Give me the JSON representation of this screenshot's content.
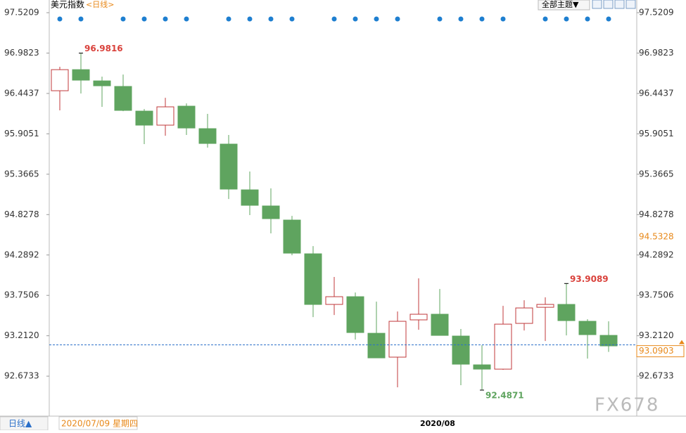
{
  "header": {
    "title": "美元指数",
    "period": "<日线>",
    "theme_menu": "全部主题▼"
  },
  "footer": {
    "period_button": "日线▲",
    "cursor_date": "2020/07/09 星期四",
    "watermark": "FX678"
  },
  "chart_data": {
    "type": "candlestick",
    "categories": [
      null,
      null,
      null,
      null,
      null,
      null,
      null,
      null,
      null,
      null,
      null,
      null,
      null,
      null,
      null,
      null,
      null,
      "2020/08",
      null,
      null,
      null,
      null,
      null,
      null,
      null,
      null,
      null
    ],
    "open": [
      96.48,
      96.761,
      96.611,
      96.537,
      96.208,
      96.021,
      96.274,
      95.974,
      95.768,
      95.158,
      94.943,
      94.755,
      94.305,
      93.63,
      93.733,
      93.245,
      92.927,
      93.424,
      93.499,
      93.208,
      92.824,
      92.767,
      93.377,
      93.592,
      93.63,
      93.405,
      93.217
    ],
    "high": [
      96.799,
      96.9816,
      96.668,
      96.696,
      96.236,
      96.386,
      96.311,
      96.171,
      95.89,
      95.402,
      95.177,
      94.811,
      94.408,
      93.996,
      93.789,
      93.667,
      93.536,
      93.977,
      93.836,
      93.302,
      93.086,
      93.611,
      93.686,
      93.724,
      93.9089,
      93.433,
      93.405
    ],
    "low": [
      96.218,
      96.443,
      96.265,
      96.208,
      95.768,
      95.88,
      95.89,
      95.721,
      95.036,
      94.821,
      94.577,
      94.286,
      93.461,
      93.489,
      93.161,
      92.917,
      92.524,
      93.292,
      93.217,
      92.552,
      92.4871,
      92.758,
      93.283,
      93.142,
      93.217,
      92.908,
      92.997
    ],
    "close": [
      96.761,
      96.621,
      96.546,
      96.218,
      96.021,
      96.265,
      95.983,
      95.777,
      95.168,
      94.952,
      94.774,
      94.314,
      93.63,
      93.733,
      93.255,
      92.917,
      93.405,
      93.499,
      93.217,
      92.833,
      92.767,
      93.367,
      93.583,
      93.63,
      93.414,
      93.227,
      93.077
    ],
    "up_color": "#c0393b",
    "down_color": "#5fa45f",
    "ylim": [
      92.14,
      97.69
    ],
    "yticks": [
      97.5209,
      96.9823,
      96.4437,
      95.9051,
      95.3665,
      94.8278,
      94.2892,
      93.7506,
      {
        "value": 93.212,
        "label": "93.2120"
      },
      92.6733
    ],
    "last_price": 93.0903,
    "cursor_price": 94.5328
  }
}
